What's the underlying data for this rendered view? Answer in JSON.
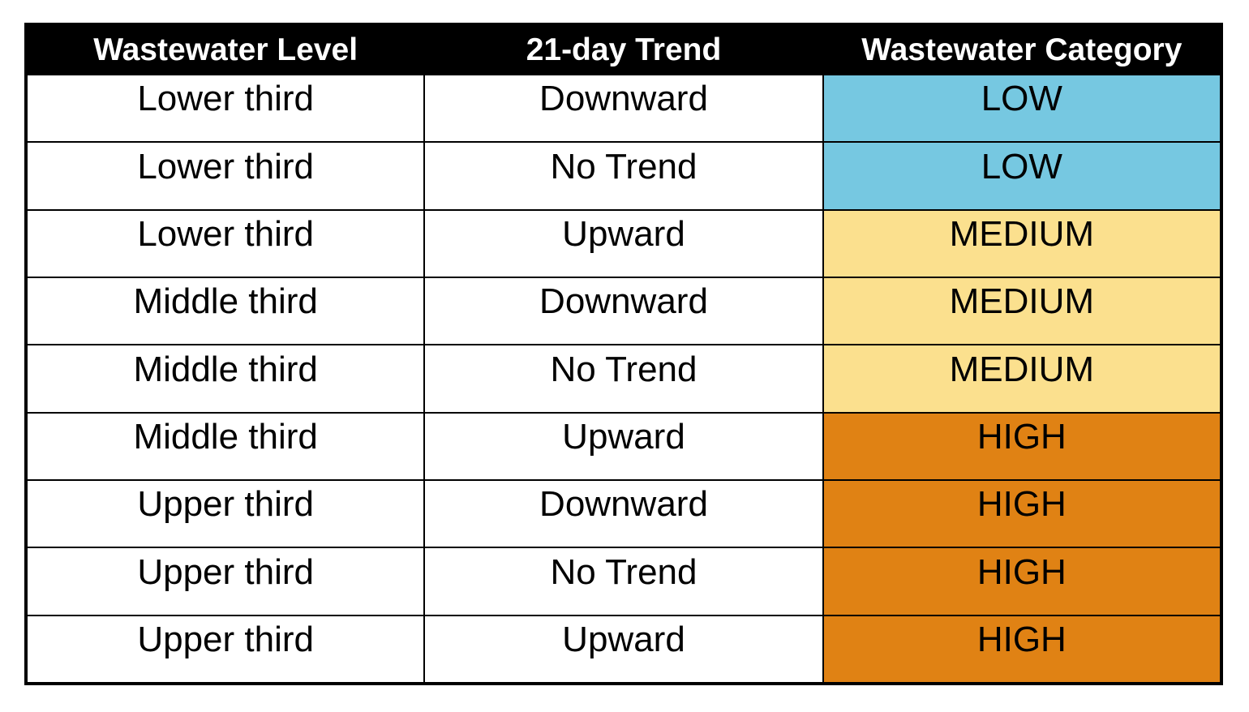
{
  "chart_data": {
    "type": "table",
    "columns": [
      "Wastewater Level",
      "21-day Trend",
      "Wastewater Category"
    ],
    "rows": [
      [
        "Lower third",
        "Downward",
        "LOW"
      ],
      [
        "Lower third",
        "No Trend",
        "LOW"
      ],
      [
        "Lower third",
        "Upward",
        "MEDIUM"
      ],
      [
        "Middle third",
        "Downward",
        "MEDIUM"
      ],
      [
        "Middle third",
        "No Trend",
        "MEDIUM"
      ],
      [
        "Middle third",
        "Upward",
        "HIGH"
      ],
      [
        "Upper third",
        "Downward",
        "HIGH"
      ],
      [
        "Upper third",
        "No Trend",
        "HIGH"
      ],
      [
        "Upper third",
        "Upward",
        "HIGH"
      ]
    ],
    "category_colors": {
      "LOW": "#76C8E1",
      "MEDIUM": "#FBE08E",
      "HIGH": "#E08214"
    },
    "layout": {
      "header_bg": "#000000",
      "header_text_color": "#FFFFFF",
      "cell_text_color": "#000000",
      "border_color": "#000000",
      "grid": "on",
      "legend": "none"
    }
  }
}
